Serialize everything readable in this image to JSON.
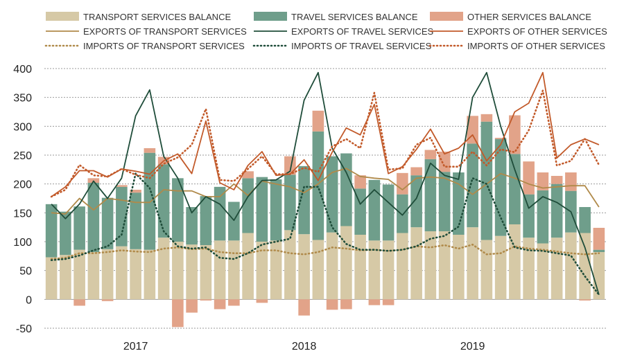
{
  "chart_data": {
    "type": "bar",
    "title": "",
    "xlabel": "",
    "ylabel": "",
    "ylim": [
      -50,
      400
    ],
    "yticks": [
      -50,
      0,
      50,
      100,
      150,
      200,
      250,
      300,
      350,
      400
    ],
    "grid": true,
    "legend_position": "top",
    "x_year_labels": [
      {
        "label": "2017",
        "month_index": 6
      },
      {
        "label": "2018",
        "month_index": 18
      },
      {
        "label": "2019",
        "month_index": 30
      }
    ],
    "months": [
      "2016-08",
      "2016-09",
      "2016-10",
      "2016-11",
      "2016-12",
      "2017-01",
      "2017-02",
      "2017-03",
      "2017-04",
      "2017-05",
      "2017-06",
      "2017-07",
      "2017-08",
      "2017-09",
      "2017-10",
      "2017-11",
      "2017-12",
      "2018-01",
      "2018-02",
      "2018-03",
      "2018-04",
      "2018-05",
      "2018-06",
      "2018-07",
      "2018-08",
      "2018-09",
      "2018-10",
      "2018-11",
      "2018-12",
      "2019-01",
      "2019-02",
      "2019-03",
      "2019-04",
      "2019-05",
      "2019-06",
      "2019-07",
      "2019-08",
      "2019-09",
      "2019-10",
      "2019-11"
    ],
    "bar_series": [
      {
        "name": "TRANSPORT SERVICES BALANCE",
        "color": "#d6c9a6",
        "values": [
          73,
          77,
          86,
          82,
          87,
          92,
          87,
          86,
          107,
          100,
          95,
          94,
          102,
          102,
          115,
          100,
          102,
          120,
          113,
          103,
          116,
          127,
          112,
          102,
          102,
          115,
          125,
          118,
          118,
          112,
          125,
          103,
          110,
          130,
          107,
          97,
          107,
          116,
          115,
          82
        ]
      },
      {
        "name": "TRAVEL SERVICES BALANCE",
        "color": "#6f9e8b",
        "values": [
          92,
          75,
          75,
          120,
          89,
          103,
          98,
          168,
          127,
          110,
          65,
          85,
          93,
          67,
          95,
          112,
          106,
          96,
          118,
          188,
          132,
          126,
          80,
          105,
          97,
          67,
          90,
          125,
          103,
          108,
          145,
          205,
          168,
          122,
          75,
          92,
          93,
          72,
          45,
          4
        ]
      },
      {
        "name": "OTHER SERVICES BALANCE",
        "color": "#e2a389",
        "values": [
          0,
          0,
          -11,
          8,
          -3,
          3,
          5,
          8,
          13,
          -48,
          -23,
          -2,
          -17,
          -11,
          12,
          -6,
          0,
          32,
          -28,
          36,
          -18,
          -17,
          23,
          -10,
          -10,
          37,
          14,
          16,
          35,
          0,
          48,
          13,
          2,
          67,
          57,
          31,
          14,
          32,
          -2,
          38
        ]
      }
    ],
    "line_series": [
      {
        "name": "EXPORTS OF TRANSPORT SERVICES",
        "color": "#b08a4a",
        "style": "solid",
        "values": [
          150,
          148,
          175,
          155,
          175,
          172,
          168,
          168,
          190,
          188,
          188,
          178,
          178,
          200,
          180,
          205,
          200,
          195,
          185,
          200,
          220,
          227,
          213,
          210,
          208,
          190,
          210,
          212,
          210,
          200,
          182,
          200,
          218,
          210,
          200,
          193,
          195,
          197,
          197,
          160
        ]
      },
      {
        "name": "EXPORTS OF TRAVEL SERVICES",
        "color": "#1f4d3a",
        "style": "solid",
        "values": [
          165,
          140,
          165,
          205,
          175,
          210,
          318,
          363,
          248,
          210,
          150,
          178,
          165,
          137,
          178,
          206,
          207,
          222,
          345,
          393,
          262,
          220,
          165,
          190,
          168,
          146,
          175,
          236,
          215,
          208,
          350,
          393,
          300,
          225,
          158,
          178,
          168,
          152,
          90,
          8
        ]
      },
      {
        "name": "EXPORTS OF OTHER SERVICES",
        "color": "#c25a2a",
        "style": "solid",
        "values": [
          178,
          195,
          223,
          223,
          212,
          226,
          222,
          217,
          240,
          252,
          218,
          309,
          202,
          190,
          232,
          256,
          215,
          217,
          242,
          206,
          255,
          297,
          285,
          338,
          218,
          230,
          260,
          295,
          252,
          262,
          285,
          240,
          268,
          325,
          340,
          393,
          245,
          268,
          278,
          268
        ]
      },
      {
        "name": "IMPORTS OF TRANSPORT SERVICES",
        "color": "#b08a4a",
        "style": "dotted",
        "values": [
          70,
          72,
          80,
          80,
          82,
          85,
          83,
          82,
          88,
          90,
          87,
          88,
          82,
          80,
          80,
          85,
          85,
          80,
          78,
          82,
          90,
          88,
          85,
          86,
          84,
          86,
          92,
          90,
          94,
          88,
          95,
          78,
          80,
          92,
          88,
          86,
          83,
          80,
          78,
          80
        ]
      },
      {
        "name": "IMPORTS OF TRAVEL SERVICES",
        "color": "#1f4d3a",
        "style": "dotted",
        "values": [
          68,
          70,
          76,
          85,
          92,
          112,
          218,
          193,
          118,
          92,
          88,
          90,
          72,
          70,
          80,
          95,
          100,
          105,
          195,
          195,
          125,
          96,
          86,
          86,
          84,
          86,
          92,
          105,
          110,
          126,
          210,
          200,
          142,
          90,
          85,
          84,
          80,
          76,
          40,
          8
        ]
      },
      {
        "name": "IMPORTS OF OTHER SERVICES",
        "color": "#c25a2a",
        "style": "dotted",
        "values": [
          178,
          190,
          233,
          215,
          213,
          226,
          216,
          210,
          235,
          246,
          268,
          330,
          207,
          205,
          226,
          248,
          217,
          217,
          228,
          221,
          265,
          278,
          262,
          358,
          225,
          227,
          268,
          280,
          230,
          230,
          256,
          232,
          260,
          255,
          293,
          362,
          232,
          240,
          278,
          233
        ]
      }
    ]
  }
}
